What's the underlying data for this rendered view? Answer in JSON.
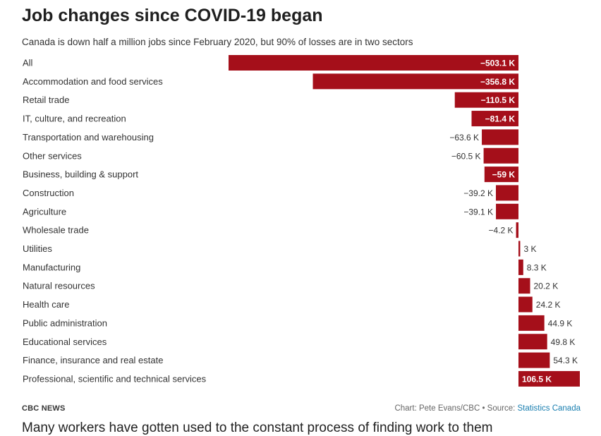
{
  "title": "Job changes since COVID-19 began",
  "subtitle": "Canada is down half a million jobs since February 2020, but 90% of losses are in two sectors",
  "footer": {
    "brand": "CBC NEWS",
    "credit": "Chart: Pete Evans/CBC • Source: ",
    "source_link": "Statistics Canada"
  },
  "trailing_text": "Many workers have gotten used to the constant process of finding work to them",
  "colors": {
    "bar": "#a50f1a"
  },
  "chart_data": {
    "type": "bar",
    "orientation": "horizontal",
    "unit": "K",
    "categories": [
      "All",
      "Accommodation and food services",
      "Retail trade",
      "IT, culture, and recreation",
      "Transportation and warehousing",
      "Other services",
      "Business, building & support",
      "Construction",
      "Agriculture",
      "Wholesale trade",
      "Utilities",
      "Manufacturing",
      "Natural resources",
      "Health care",
      "Public administration",
      "Educational services",
      "Finance, insurance and real estate",
      "Professional, scientific and technical services"
    ],
    "values": [
      -503.1,
      -356.8,
      -110.5,
      -81.4,
      -63.6,
      -60.5,
      -59,
      -39.2,
      -39.1,
      -4.2,
      3,
      8.3,
      20.2,
      24.2,
      44.9,
      49.8,
      54.3,
      106.5
    ],
    "labels": [
      "−503.1 K",
      "−356.8 K",
      "−110.5 K",
      "−81.4 K",
      "−63.6 K",
      "−60.5 K",
      "−59 K",
      "−39.2 K",
      "−39.1 K",
      "−4.2 K",
      "3 K",
      "8.3 K",
      "20.2 K",
      "24.2 K",
      "44.9 K",
      "49.8 K",
      "54.3 K",
      "106.5 K"
    ],
    "xlim": [
      -503.1,
      106.5
    ],
    "grid": false,
    "legend": "none"
  }
}
